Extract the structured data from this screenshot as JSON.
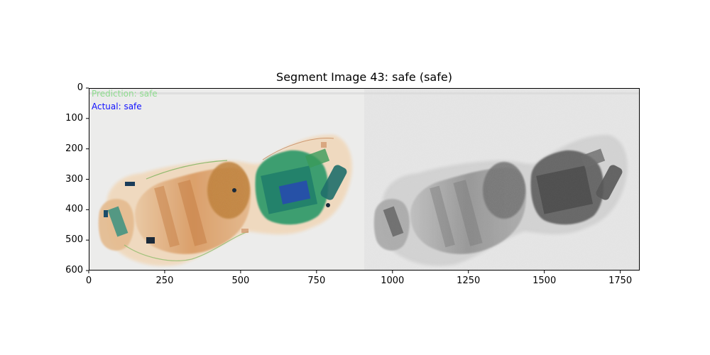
{
  "figure": {
    "title": "Segment Image 43: safe (safe)",
    "overlay": {
      "prediction_text": "Prediction: safe",
      "actual_text": "Actual: safe",
      "prediction_color": "#8fdc8f",
      "actual_color": "#1010ff"
    },
    "x_axis": {
      "range": [
        0,
        1814
      ],
      "ticks": [
        0,
        250,
        500,
        750,
        1000,
        1250,
        1500,
        1750
      ],
      "tick_labels": [
        "0",
        "250",
        "500",
        "750",
        "1000",
        "1250",
        "1500",
        "1750"
      ]
    },
    "y_axis": {
      "range": [
        0,
        600
      ],
      "inverted": true,
      "ticks": [
        0,
        100,
        200,
        300,
        400,
        500,
        600
      ],
      "tick_labels": [
        "0",
        "100",
        "200",
        "300",
        "400",
        "500",
        "600"
      ]
    },
    "image_panels": [
      {
        "name": "color xray",
        "x_range": [
          0,
          907
        ]
      },
      {
        "name": "grayscale segment",
        "x_range": [
          907,
          1814
        ]
      }
    ]
  }
}
